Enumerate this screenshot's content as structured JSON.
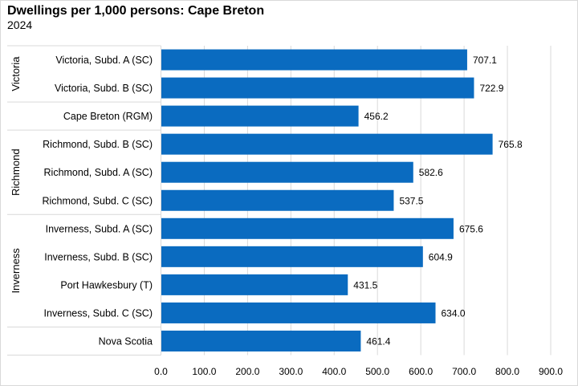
{
  "chart_data": {
    "type": "bar",
    "orientation": "horizontal",
    "title": "Dwellings per 1,000 persons: Cape Breton",
    "subtitle": "2024",
    "xlabel": "",
    "ylabel": "",
    "xlim": [
      0,
      900
    ],
    "x_ticks": [
      "0.0",
      "100.0",
      "200.0",
      "300.0",
      "400.0",
      "500.0",
      "600.0",
      "700.0",
      "800.0",
      "900.0"
    ],
    "grid": true,
    "bar_color": "#0A6BC0",
    "groups": [
      {
        "name": "Victoria",
        "start": 0,
        "end": 1
      },
      {
        "name": "",
        "start": 2,
        "end": 2
      },
      {
        "name": "Richmond",
        "start": 3,
        "end": 5
      },
      {
        "name": "Inverness",
        "start": 6,
        "end": 9
      },
      {
        "name": "",
        "start": 10,
        "end": 10
      }
    ],
    "categories": [
      "Victoria, Subd. A (SC)",
      "Victoria, Subd. B (SC)",
      "Cape Breton (RGM)",
      "Richmond, Subd. B (SC)",
      "Richmond, Subd. A (SC)",
      "Richmond, Subd. C (SC)",
      "Inverness, Subd. A (SC)",
      "Inverness, Subd. B (SC)",
      "Port Hawkesbury (T)",
      "Inverness, Subd. C (SC)",
      "Nova Scotia"
    ],
    "values": [
      707.1,
      722.9,
      456.2,
      765.8,
      582.6,
      537.5,
      675.6,
      604.9,
      431.5,
      634.0,
      461.4
    ],
    "data_labels": [
      "707.1",
      "722.9",
      "456.2",
      "765.8",
      "582.6",
      "537.5",
      "675.6",
      "604.9",
      "431.5",
      "634.0",
      "461.4"
    ]
  }
}
